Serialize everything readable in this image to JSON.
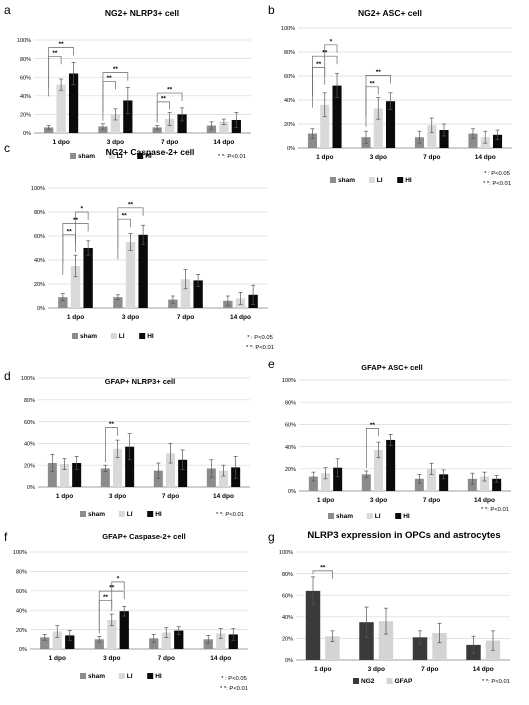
{
  "figure": {
    "categories": [
      "1 dpo",
      "3 dpo",
      "7 dpo",
      "14 dpo"
    ],
    "colors": {
      "sham": "#8c8c8c",
      "LI": "#d9d9d9",
      "HI": "#0a0a0a",
      "NG2": "#3a3a3a",
      "GFAP": "#d4d4d4",
      "grid": "#d9d9d9",
      "axis": "#7f7f7f"
    }
  },
  "chart_data": [
    {
      "id": "a",
      "panel_letter": "a",
      "type": "bar",
      "title": "NG2+ NLRP3+ cell",
      "categories": [
        "1 dpo",
        "3 dpo",
        "7 dpo",
        "14 dpo"
      ],
      "yticks": [
        "0%",
        "20%",
        "40%",
        "60%",
        "80%",
        "100%"
      ],
      "ylim": [
        0,
        100
      ],
      "series": [
        {
          "name": "sham",
          "color": "#8c8c8c",
          "values": [
            6,
            7,
            6,
            8
          ],
          "errors": [
            2,
            3,
            2,
            4
          ]
        },
        {
          "name": "LI",
          "color": "#d9d9d9",
          "values": [
            52,
            20,
            15,
            12
          ],
          "errors": [
            6,
            6,
            7,
            3
          ]
        },
        {
          "name": "HI",
          "color": "#0a0a0a",
          "values": [
            64,
            35,
            20,
            14
          ],
          "errors": [
            12,
            14,
            7,
            8
          ]
        }
      ],
      "significance": [
        {
          "cat": 0,
          "from": 0,
          "to": 2,
          "label": "**"
        },
        {
          "cat": 0,
          "from": 0,
          "to": 1,
          "label": "**"
        },
        {
          "cat": 1,
          "from": 0,
          "to": 2,
          "label": "**"
        },
        {
          "cat": 1,
          "from": 0,
          "to": 1,
          "label": "**"
        },
        {
          "cat": 2,
          "from": 0,
          "to": 2,
          "label": "**"
        },
        {
          "cat": 2,
          "from": 0,
          "to": 1,
          "label": "**"
        }
      ],
      "legend": "bottom",
      "grid": true,
      "notes": [
        "* *: P<0.01"
      ]
    },
    {
      "id": "b",
      "panel_letter": "b",
      "type": "bar",
      "title": "NG2+ ASC+ cell",
      "categories": [
        "1 dpo",
        "3 dpo",
        "7 dpo",
        "14 dpo"
      ],
      "yticks": [
        "0%",
        "20%",
        "40%",
        "60%",
        "80%",
        "100%"
      ],
      "ylim": [
        0,
        100
      ],
      "series": [
        {
          "name": "sham",
          "color": "#8c8c8c",
          "values": [
            12,
            9,
            9,
            12
          ],
          "errors": [
            4,
            5,
            5,
            4
          ]
        },
        {
          "name": "LI",
          "color": "#d9d9d9",
          "values": [
            36,
            33,
            19,
            9
          ],
          "errors": [
            10,
            9,
            6,
            5
          ]
        },
        {
          "name": "HI",
          "color": "#0a0a0a",
          "values": [
            52,
            39,
            15,
            11
          ],
          "errors": [
            10,
            7,
            5,
            4
          ]
        }
      ],
      "significance": [
        {
          "cat": 0,
          "from": 1,
          "to": 2,
          "label": "*"
        },
        {
          "cat": 0,
          "from": 0,
          "to": 2,
          "label": "**"
        },
        {
          "cat": 0,
          "from": 0,
          "to": 1,
          "label": "**"
        },
        {
          "cat": 1,
          "from": 0,
          "to": 2,
          "label": "**"
        },
        {
          "cat": 1,
          "from": 0,
          "to": 1,
          "label": "**"
        }
      ],
      "legend": "bottom",
      "grid": true,
      "notes": [
        "* : P<0.05",
        "* *: P<0.01"
      ]
    },
    {
      "id": "c",
      "panel_letter": "c",
      "type": "bar",
      "title": "NG2+ Caspase-2+ cell",
      "categories": [
        "1 dpo",
        "3 dpo",
        "7 dpo",
        "14 dpo"
      ],
      "yticks": [
        "0%",
        "20%",
        "40%",
        "60%",
        "80%",
        "100%"
      ],
      "ylim": [
        0,
        100
      ],
      "series": [
        {
          "name": "sham",
          "color": "#8c8c8c",
          "values": [
            9,
            9,
            7,
            6
          ],
          "errors": [
            3,
            2,
            3,
            4
          ]
        },
        {
          "name": "LI",
          "color": "#d9d9d9",
          "values": [
            35,
            55,
            24,
            8
          ],
          "errors": [
            9,
            7,
            8,
            5
          ]
        },
        {
          "name": "HI",
          "color": "#0a0a0a",
          "values": [
            50,
            61,
            23,
            11
          ],
          "errors": [
            6,
            8,
            5,
            8
          ]
        }
      ],
      "significance": [
        {
          "cat": 0,
          "from": 1,
          "to": 2,
          "label": "*"
        },
        {
          "cat": 0,
          "from": 0,
          "to": 2,
          "label": "**"
        },
        {
          "cat": 0,
          "from": 0,
          "to": 1,
          "label": "**"
        },
        {
          "cat": 1,
          "from": 0,
          "to": 2,
          "label": "**"
        },
        {
          "cat": 1,
          "from": 0,
          "to": 1,
          "label": "**"
        }
      ],
      "legend": "bottom",
      "grid": true,
      "notes": [
        "* : P<0.05",
        "* *: P<0.01"
      ]
    },
    {
      "id": "d",
      "panel_letter": "d",
      "type": "bar",
      "title": "GFAP+ NLRP3+ cell",
      "categories": [
        "1 dpo",
        "3 dpo",
        "7 dpo",
        "14 dpo"
      ],
      "yticks": [
        "0%",
        "20%",
        "40%",
        "60%",
        "80%",
        "100%"
      ],
      "ylim": [
        0,
        100
      ],
      "series": [
        {
          "name": "sham",
          "color": "#8c8c8c",
          "values": [
            22,
            17,
            15,
            17
          ],
          "errors": [
            8,
            3,
            7,
            8
          ]
        },
        {
          "name": "LI",
          "color": "#d9d9d9",
          "values": [
            21,
            35,
            31,
            15
          ],
          "errors": [
            5,
            8,
            9,
            5
          ]
        },
        {
          "name": "HI",
          "color": "#0a0a0a",
          "values": [
            22,
            37,
            25,
            18
          ],
          "errors": [
            6,
            12,
            9,
            10
          ]
        }
      ],
      "significance": [
        {
          "cat": 1,
          "from": 0,
          "to": 1,
          "label": "**"
        }
      ],
      "legend": "bottom",
      "grid": true,
      "notes": [
        "* *: P<0.01"
      ]
    },
    {
      "id": "e",
      "panel_letter": "e",
      "type": "bar",
      "title": "GFAP+ ASC+ cell",
      "categories": [
        "1 dpo",
        "3 dpo",
        "7 dpo",
        "14 dpo"
      ],
      "yticks": [
        "0%",
        "20%",
        "40%",
        "60%",
        "80%",
        "100%"
      ],
      "ylim": [
        0,
        100
      ],
      "series": [
        {
          "name": "sham",
          "color": "#8c8c8c",
          "values": [
            13,
            15,
            11,
            11
          ],
          "errors": [
            4,
            3,
            4,
            5
          ]
        },
        {
          "name": "LI",
          "color": "#d9d9d9",
          "values": [
            16,
            37,
            20,
            13
          ],
          "errors": [
            5,
            7,
            5,
            4
          ]
        },
        {
          "name": "HI",
          "color": "#0a0a0a",
          "values": [
            21,
            46,
            15,
            11
          ],
          "errors": [
            8,
            5,
            4,
            3
          ]
        }
      ],
      "significance": [
        {
          "cat": 1,
          "from": 0,
          "to": 1,
          "label": "**"
        }
      ],
      "legend": "bottom",
      "grid": true,
      "notes": [
        "* *: P<0.01"
      ]
    },
    {
      "id": "f",
      "panel_letter": "f",
      "type": "bar",
      "title": "GFAP+ Caspase-2+ cell",
      "categories": [
        "1 dpo",
        "3 dpo",
        "7 dpo",
        "14 dpo"
      ],
      "yticks": [
        "0%",
        "20%",
        "40%",
        "60%",
        "80%",
        "100%"
      ],
      "ylim": [
        0,
        100
      ],
      "series": [
        {
          "name": "sham",
          "color": "#8c8c8c",
          "values": [
            12,
            10,
            11,
            10
          ],
          "errors": [
            3,
            3,
            4,
            4
          ]
        },
        {
          "name": "LI",
          "color": "#d9d9d9",
          "values": [
            18,
            30,
            17,
            16
          ],
          "errors": [
            6,
            6,
            5,
            5
          ]
        },
        {
          "name": "HI",
          "color": "#0a0a0a",
          "values": [
            14,
            39,
            19,
            15
          ],
          "errors": [
            5,
            5,
            4,
            6
          ]
        }
      ],
      "significance": [
        {
          "cat": 1,
          "from": 1,
          "to": 2,
          "label": "*"
        },
        {
          "cat": 1,
          "from": 0,
          "to": 2,
          "label": "**"
        },
        {
          "cat": 1,
          "from": 0,
          "to": 1,
          "label": "**"
        }
      ],
      "legend": "bottom",
      "grid": true,
      "notes": [
        "* : P<0.05",
        "* *: P<0.01"
      ]
    },
    {
      "id": "g",
      "panel_letter": "g",
      "type": "bar",
      "title": "NLRP3 expression in OPCs and astrocytes",
      "categories": [
        "1 dpo",
        "3 dpo",
        "7 dpo",
        "14 dpo"
      ],
      "yticks": [
        "0%",
        "20%",
        "40%",
        "60%",
        "80%",
        "100%"
      ],
      "ylim": [
        0,
        100
      ],
      "series": [
        {
          "name": "NG2",
          "color": "#3a3a3a",
          "values": [
            64,
            35,
            21,
            14
          ],
          "errors": [
            13,
            14,
            6,
            8
          ]
        },
        {
          "name": "GFAP",
          "color": "#d4d4d4",
          "values": [
            22,
            36,
            25,
            18
          ],
          "errors": [
            5,
            12,
            9,
            9
          ]
        }
      ],
      "significance": [
        {
          "cat": 0,
          "from": 0,
          "to": 1,
          "label": "**"
        }
      ],
      "legend": "bottom",
      "grid": true,
      "notes": [
        "* *: P<0.01"
      ]
    }
  ]
}
